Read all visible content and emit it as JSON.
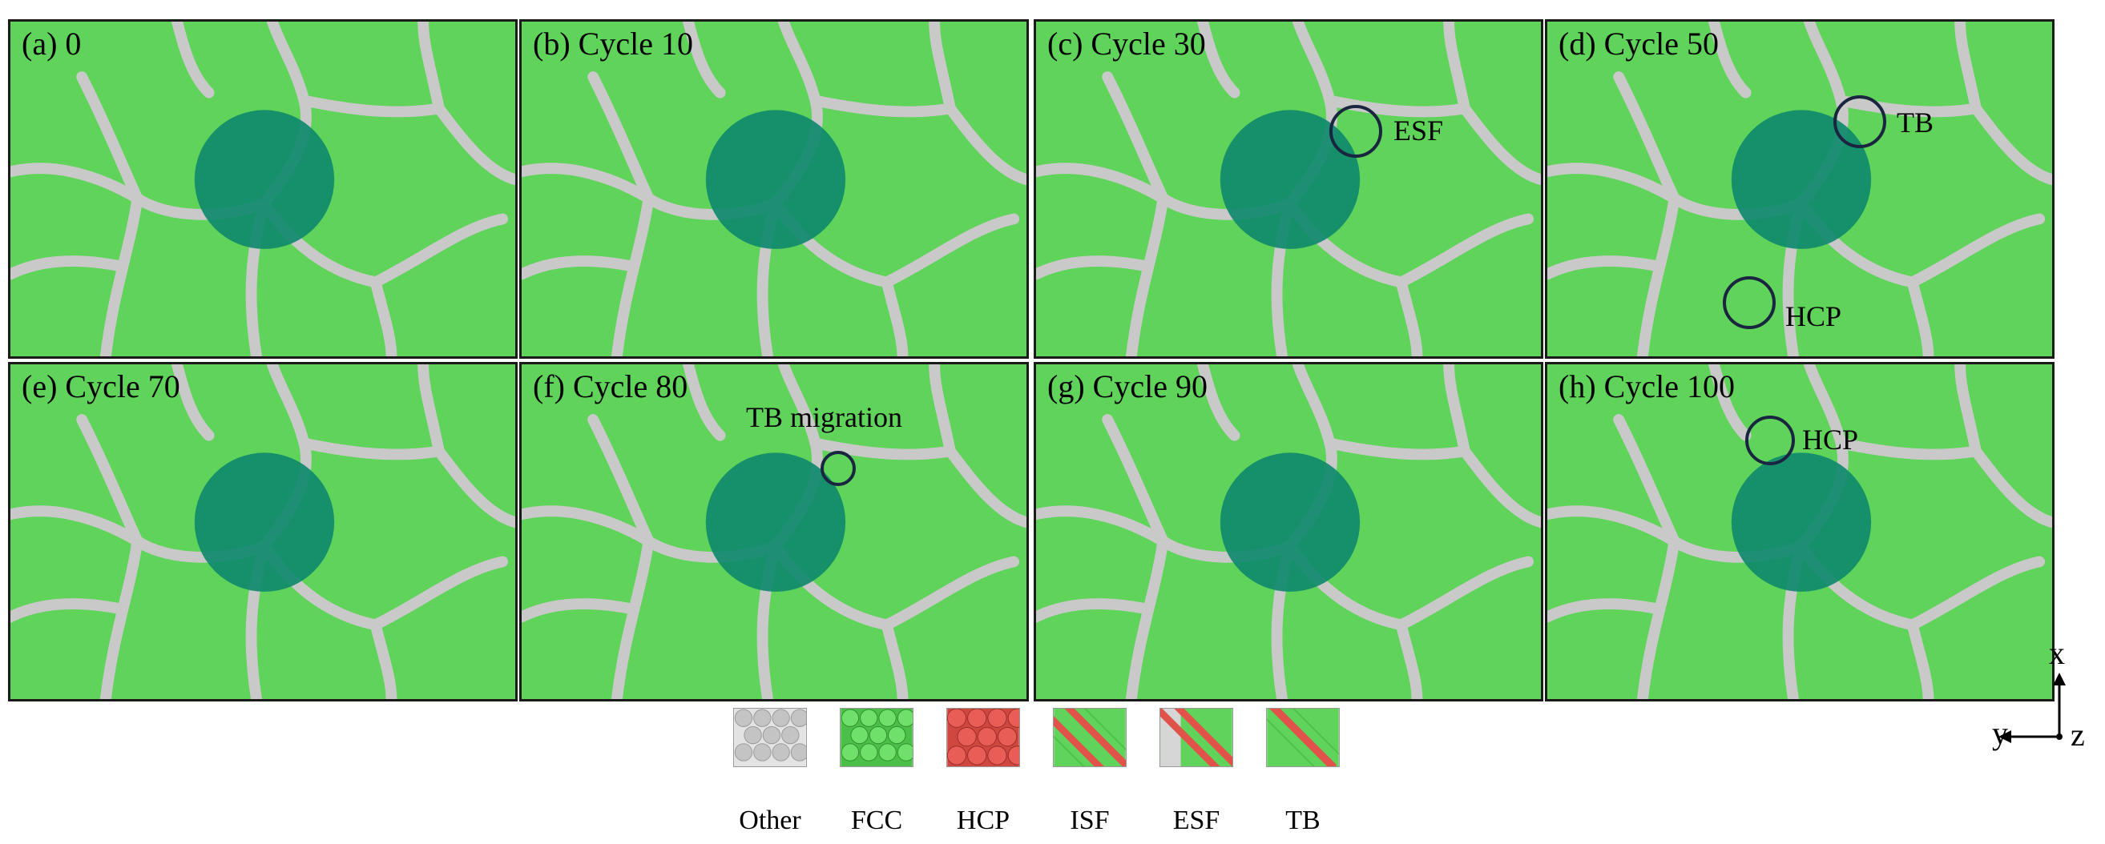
{
  "panels": [
    {
      "label": "(a) 0"
    },
    {
      "label": "(b) Cycle 10"
    },
    {
      "label": "(c) Cycle 30",
      "annotation": "ESF"
    },
    {
      "label": "(d) Cycle 50",
      "annotations": [
        "TB",
        "HCP"
      ]
    },
    {
      "label": "(e) Cycle 70"
    },
    {
      "label": "(f) Cycle 80",
      "annotation": "TB migration"
    },
    {
      "label": "(g) Cycle 90"
    },
    {
      "label": "(h) Cycle 100",
      "annotation": "HCP"
    }
  ],
  "legend": [
    {
      "label": "Other"
    },
    {
      "label": "FCC"
    },
    {
      "label": "HCP"
    },
    {
      "label": "ISF"
    },
    {
      "label": "ESF"
    },
    {
      "label": "TB"
    }
  ],
  "axes": {
    "x": "x",
    "y": "y",
    "z": "z"
  },
  "colors": {
    "fcc": "#5fd35a",
    "other": "#c9c9c9",
    "hcp": "#e0524a",
    "particle": "#0f8a6c",
    "ring": "#1a2540"
  }
}
